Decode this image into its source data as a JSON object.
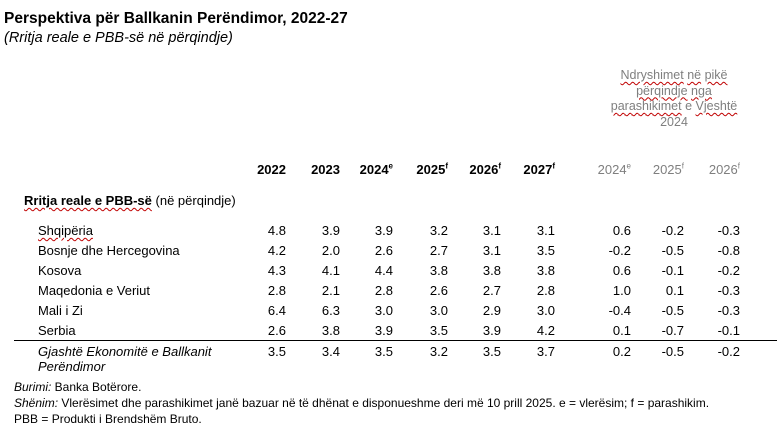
{
  "title": "Perspektiva për Ballkanin Perëndimor, 2022-27",
  "subtitle": "(Rritja reale e PBB-së në përqindje)",
  "changes_header": "Ndryshimet në pikë përqindje nga parashikimet e Vjeshtë 2024",
  "columns": [
    "2022",
    "2023",
    "2024e",
    "2025f",
    "2026f",
    "2027f",
    "2024e",
    "2025f",
    "2026f"
  ],
  "section": {
    "title_bold": "Rritja reale e PBB-së",
    "title_rest": " (në përqindje)"
  },
  "rows": [
    {
      "label": "Shqipëria",
      "values": [
        "4.8",
        "3.9",
        "3.9",
        "3.2",
        "3.1",
        "3.1",
        "0.6",
        "-0.2",
        "-0.3"
      ]
    },
    {
      "label": "Bosnje dhe Hercegovina",
      "values": [
        "4.2",
        "2.0",
        "2.6",
        "2.7",
        "3.1",
        "3.5",
        "-0.2",
        "-0.5",
        "-0.8"
      ]
    },
    {
      "label": "Kosova",
      "values": [
        "4.3",
        "4.1",
        "4.4",
        "3.8",
        "3.8",
        "3.8",
        "0.6",
        "-0.1",
        "-0.2"
      ]
    },
    {
      "label": "Maqedonia e Veriut",
      "values": [
        "2.8",
        "2.1",
        "2.8",
        "2.6",
        "2.7",
        "2.8",
        "1.0",
        "0.1",
        "-0.3"
      ]
    },
    {
      "label": "Mali i Zi",
      "values": [
        "6.4",
        "6.3",
        "3.0",
        "3.0",
        "2.9",
        "3.0",
        "-0.4",
        "-0.5",
        "-0.3"
      ]
    },
    {
      "label": "Serbia",
      "values": [
        "2.6",
        "3.8",
        "3.9",
        "3.5",
        "3.9",
        "4.2",
        "0.1",
        "-0.7",
        "-0.1"
      ]
    }
  ],
  "aggregate": {
    "label": "Gjashtë Ekonomitë e Ballkanit Perëndimor",
    "values": [
      "3.5",
      "3.4",
      "3.5",
      "3.2",
      "3.5",
      "3.7",
      "0.2",
      "-0.5",
      "-0.2"
    ]
  },
  "notes": {
    "source_label": "Burimi:",
    "source_text": " Banka Botërore.",
    "note_label": "Shënim:",
    "note_text": " Vlerësimet dhe parashikimet janë bazuar në të dhënat e disponueshme deri më 10 prill 2025. e = vlerësim; f = parashikim.",
    "abbrev": "PBB = Produkti i Brendshëm Bruto."
  }
}
